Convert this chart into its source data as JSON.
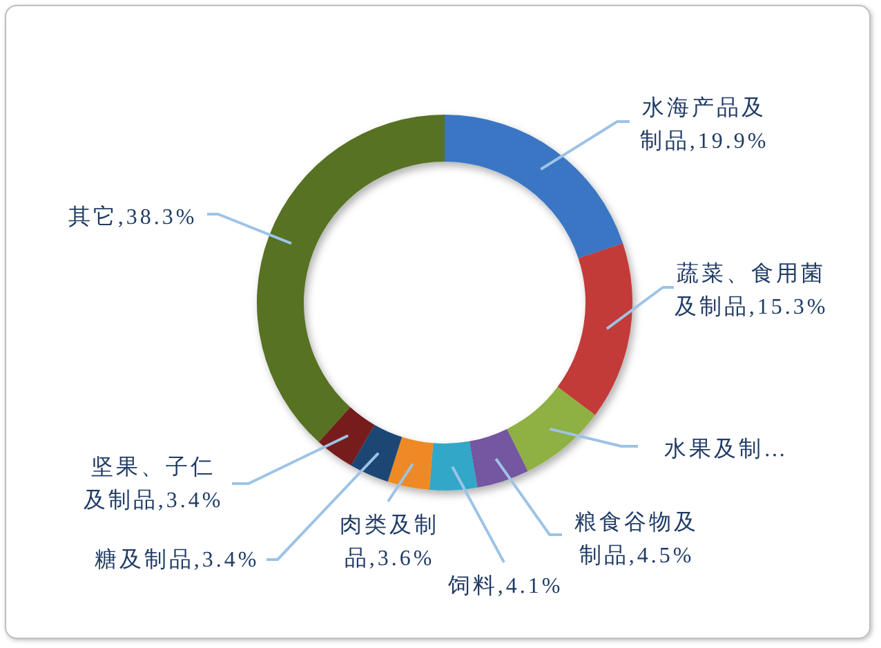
{
  "chart_data": {
    "type": "donut",
    "categories": [
      "水海产品及制品",
      "蔬菜、食用菌及制品",
      "水果及制…",
      "粮食谷物及制品",
      "饲料",
      "肉类及制品",
      "糖及制品",
      "坚果、子仁及制品",
      "其它"
    ],
    "values": [
      19.9,
      15.3,
      7.5,
      4.5,
      4.1,
      3.6,
      3.4,
      3.4,
      38.3
    ],
    "colors": [
      "#3a76c4",
      "#c23b37",
      "#8fb042",
      "#7456a0",
      "#33a7c8",
      "#ee8a26",
      "#1f4775",
      "#761f1d",
      "#577224"
    ],
    "value_labels": [
      "19.9%",
      "15.3%",
      null,
      "4.5%",
      "4.1%",
      "3.6%",
      "3.4%",
      "3.4%",
      "38.3%"
    ]
  }
}
